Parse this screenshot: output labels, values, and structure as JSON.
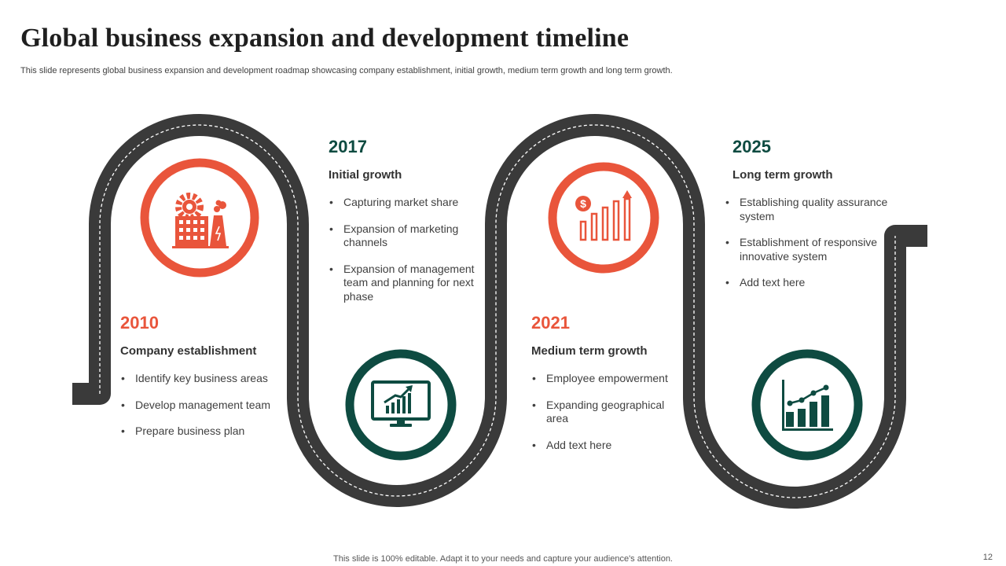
{
  "header": {
    "title": "Global business expansion and development  timeline",
    "subtitle": "This slide represents global business expansion and development roadmap showcasing company establishment, initial growth, medium term growth and long term growth."
  },
  "milestones": [
    {
      "year": "2010",
      "heading": "Company establishment",
      "bullets": [
        "Identify key business areas",
        "Develop management team",
        "Prepare business plan"
      ],
      "icon": "factory-gear-icon",
      "color": "#e9553b"
    },
    {
      "year": "2017",
      "heading": "Initial growth",
      "bullets": [
        "Capturing market share",
        "Expansion of marketing channels",
        "Expansion of management team and planning for next phase"
      ],
      "icon": "monitor-growth-chart-icon",
      "color": "#0e4b41"
    },
    {
      "year": "2021",
      "heading": "Medium term growth",
      "bullets": [
        "Employee empowerment",
        "Expanding geographical area",
        "Add text here"
      ],
      "icon": "dollar-bar-chart-icon",
      "color": "#e9553b"
    },
    {
      "year": "2025",
      "heading": "Long term growth",
      "bullets": [
        "Establishing quality assurance system",
        "Establishment of responsive innovative system",
        "Add text here"
      ],
      "icon": "bar-line-chart-icon",
      "color": "#0e4b41"
    }
  ],
  "colors": {
    "accent_orange": "#e9553b",
    "accent_green": "#0e4b41",
    "road": "#3a3a3a"
  },
  "footer": {
    "note": "This slide is 100% editable. Adapt it to your needs and capture your audience's attention.",
    "page_number": "12"
  }
}
